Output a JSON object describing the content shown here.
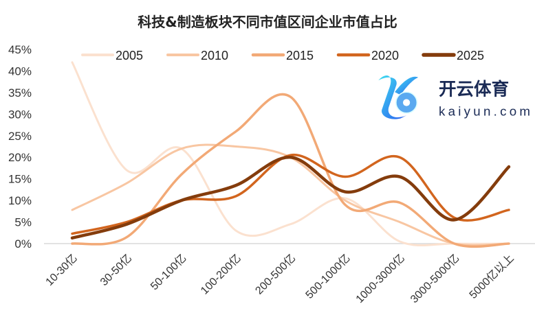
{
  "chart_data": {
    "type": "line",
    "title": "科技&制造板块不同市值区间企业市值占比",
    "xlabel": "",
    "ylabel": "",
    "categories": [
      "10-30亿",
      "30-50亿",
      "50-100亿",
      "100-200亿",
      "200-500亿",
      "500-1000亿",
      "1000-3000亿",
      "3000-5000亿",
      "5000亿以上"
    ],
    "ylim": [
      0,
      45
    ],
    "yticks": [
      0,
      5,
      10,
      15,
      20,
      25,
      30,
      35,
      40,
      45
    ],
    "ytick_labels": [
      "0%",
      "5%",
      "10%",
      "15%",
      "20%",
      "25%",
      "30%",
      "35%",
      "40%",
      "45%"
    ],
    "legend_position": "top",
    "grid": false,
    "series": [
      {
        "name": "2005",
        "color": "#fbe1cf",
        "values": [
          42,
          17,
          22,
          3,
          4.5,
          10.5,
          0.5,
          0,
          0
        ]
      },
      {
        "name": "2010",
        "color": "#f8c6a2",
        "values": [
          7.8,
          14,
          22,
          22.5,
          20,
          10,
          5,
          0,
          0
        ]
      },
      {
        "name": "2015",
        "color": "#f2a976",
        "values": [
          0,
          1.5,
          16,
          26,
          34,
          9,
          9.5,
          0,
          0
        ]
      },
      {
        "name": "2020",
        "color": "#d2651e",
        "values": [
          2.3,
          5,
          10,
          11,
          20.5,
          15.5,
          20,
          6,
          7.8
        ]
      },
      {
        "name": "2025",
        "color": "#843c0c",
        "values": [
          1.3,
          4.5,
          10,
          13.5,
          20,
          12,
          15.5,
          5.5,
          17.8
        ]
      }
    ]
  },
  "watermark": {
    "brand": "开云体育",
    "domain": "kaiyun.com"
  }
}
